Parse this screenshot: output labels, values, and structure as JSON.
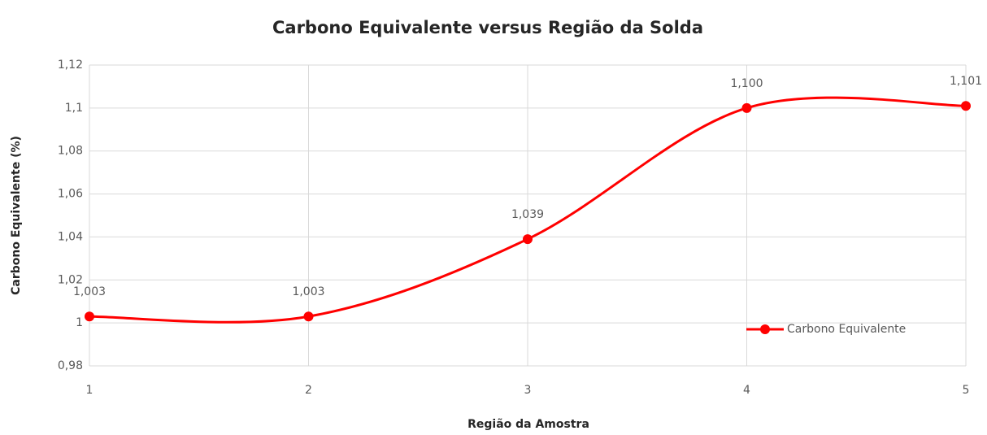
{
  "chart_data": {
    "type": "line",
    "title": "Carbono Equivalente versus Região da Solda",
    "xlabel": "Região da Amostra",
    "ylabel": "Carbono Equivalente (%)",
    "x": [
      1,
      2,
      3,
      4,
      5
    ],
    "series": [
      {
        "name": "Carbono Equivalente",
        "color": "#ff0000",
        "values": [
          1.003,
          1.003,
          1.039,
          1.1,
          1.101
        ],
        "value_labels": [
          "1,003",
          "1,003",
          "1,039",
          "1,100",
          "1,101"
        ]
      }
    ],
    "xlim": [
      1,
      5
    ],
    "xticks": [
      1,
      2,
      3,
      4,
      5
    ],
    "ylim": [
      0.98,
      1.12
    ],
    "yticks": [
      {
        "value": 0.98,
        "label": "0,98"
      },
      1,
      {
        "value": 1.02,
        "label": "1,02"
      },
      {
        "value": 1.04,
        "label": "1,04"
      },
      {
        "value": 1.06,
        "label": "1,06"
      },
      {
        "value": 1.08,
        "label": "1,08"
      },
      {
        "value": 1.1,
        "label": "1,1"
      },
      {
        "value": 1.12,
        "label": "1,12"
      }
    ],
    "grid": true,
    "smooth": true,
    "legend": "lower right"
  }
}
